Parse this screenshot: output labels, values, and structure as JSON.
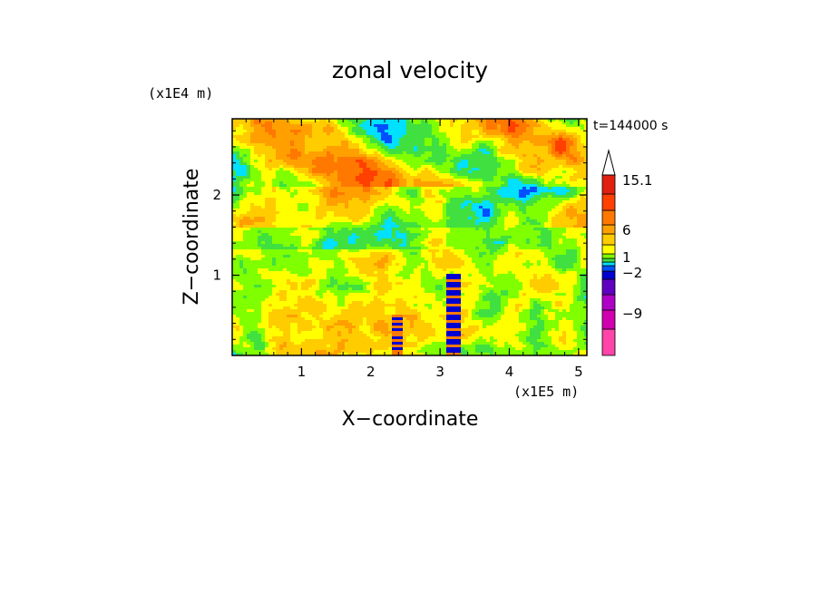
{
  "chart_data": {
    "type": "heatmap",
    "title": "zonal velocity",
    "xlabel": "X−coordinate",
    "ylabel": "Z−coordinate",
    "x_scale_label": "(x1E5 m)",
    "y_scale_label": "(x1E4 m)",
    "time_label": "t=144000 s",
    "xlim": [
      0,
      5.12
    ],
    "ylim": [
      0,
      2.95
    ],
    "x_ticks": [
      "1",
      "2",
      "3",
      "4",
      "5"
    ],
    "y_ticks": [
      "1",
      "2"
    ],
    "colorbar": {
      "labels": [
        "15.1",
        "6",
        "1",
        "−2",
        "−9"
      ],
      "colors": [
        "#ff44aa",
        "#d000b0",
        "#b000c8",
        "#6000c0",
        "#0000d0",
        "#0050ff",
        "#00e0ff",
        "#40e040",
        "#80ff00",
        "#ffff00",
        "#ffcc00",
        "#ffa000",
        "#ff7800",
        "#ff4000",
        "#e02010",
        "#ff6464",
        "#ffb4b4"
      ]
    }
  }
}
